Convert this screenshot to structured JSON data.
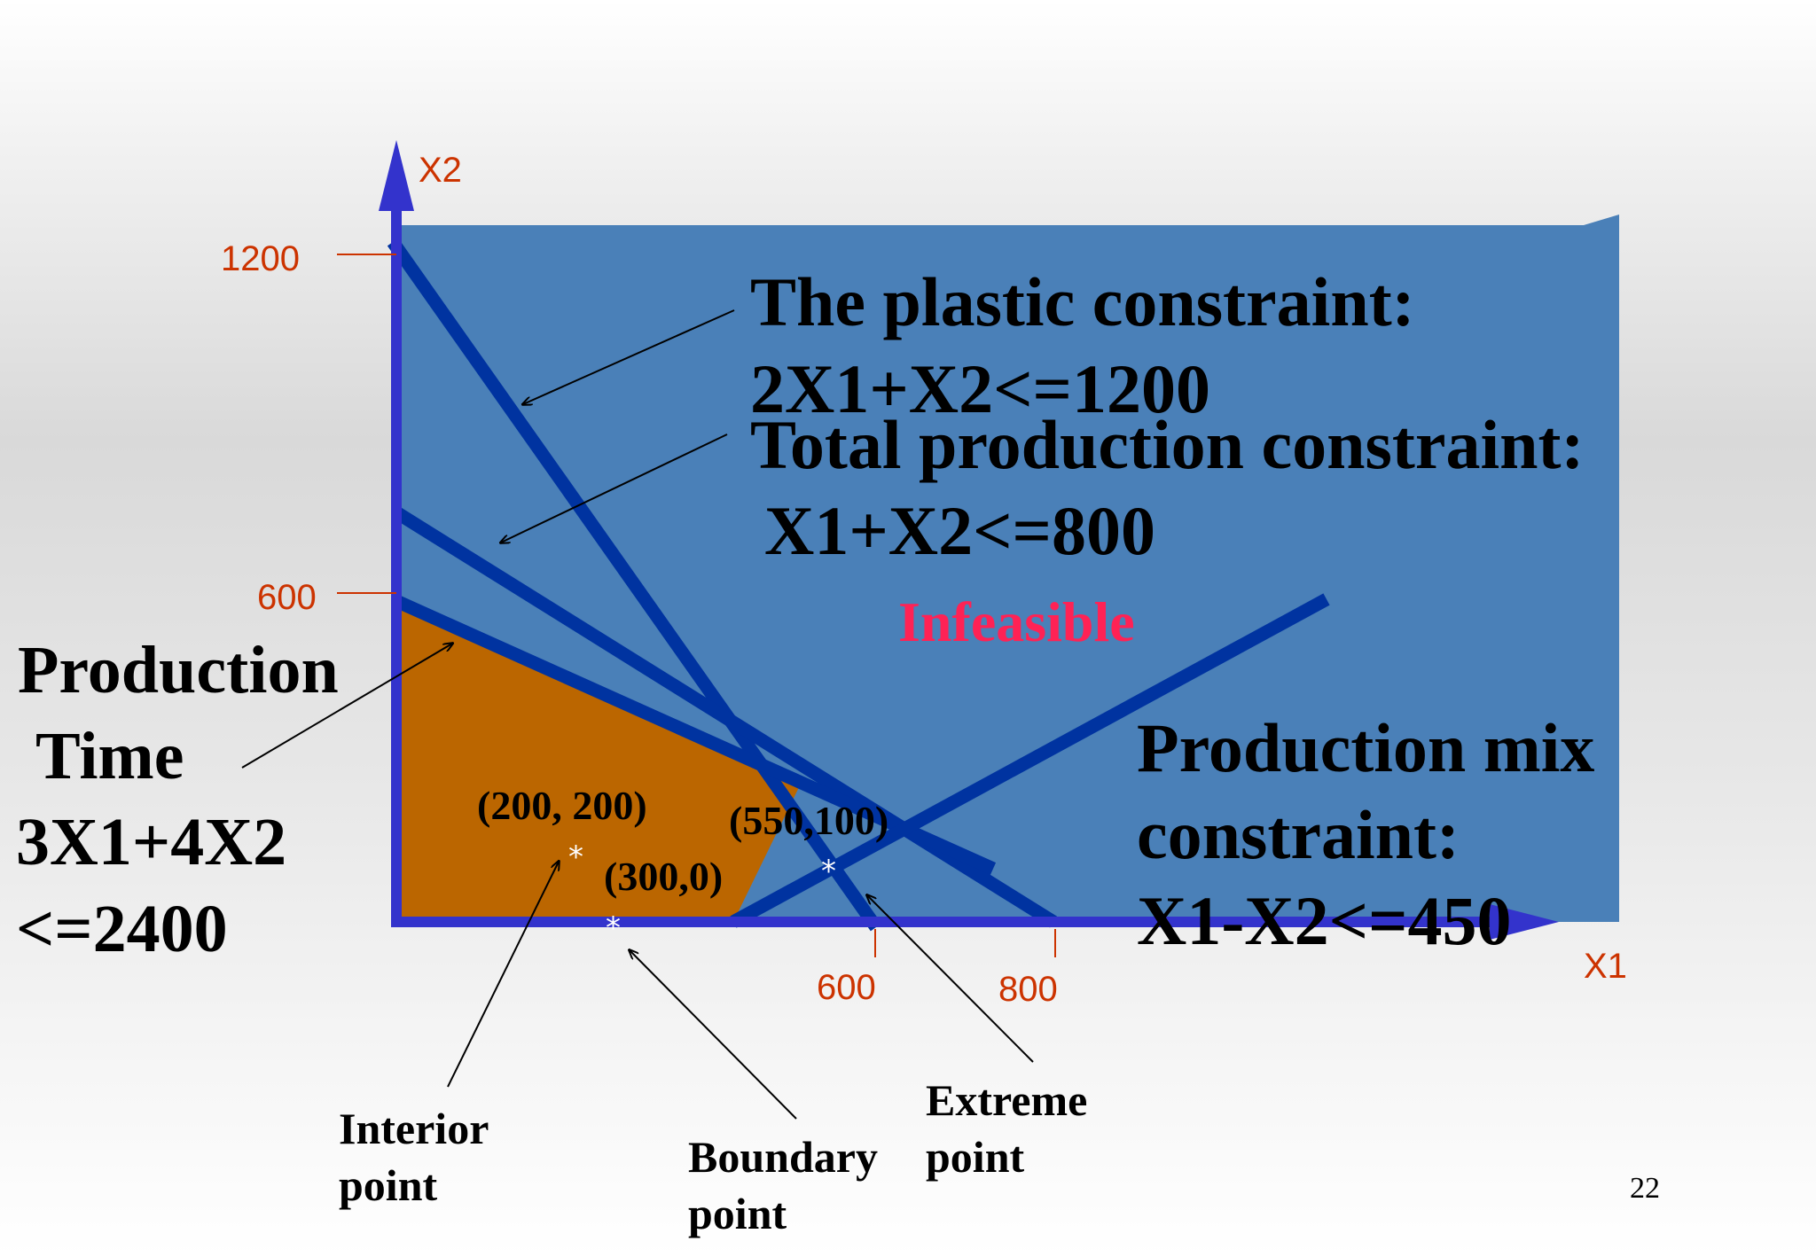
{
  "axes": {
    "x_label": "X1",
    "y_label": "X2",
    "x_ticks": [
      "600",
      "800"
    ],
    "y_ticks": [
      "1200",
      "600"
    ]
  },
  "constraints": {
    "plastic": {
      "title": "The plastic constraint:",
      "expr": "2X1+X2<=1200"
    },
    "total": {
      "title": "Total production constraint:",
      "expr": "X1+X2<=800"
    },
    "mix": {
      "title_1": "Production mix",
      "title_2": "constraint:",
      "expr": "X1-X2<=450"
    },
    "time": {
      "line_1": "Production",
      "line_2": "Time",
      "line_3": "3X1+4X2",
      "line_4": "<=2400"
    }
  },
  "region": {
    "infeasible_label": "Infeasible"
  },
  "points": {
    "p1": "(200, 200)",
    "p2": "(550,100)",
    "p3": "(300,0)",
    "star": "*"
  },
  "annotations": {
    "interior_1": "Interior",
    "interior_2": "point",
    "boundary_1": "Boundary",
    "boundary_2": "point",
    "extreme_1": "Extreme",
    "extreme_2": "point"
  },
  "colors": {
    "background_region": "#4a80b8",
    "feasible_region": "#bb6600",
    "constraint_lines": "#0033a0",
    "axes": "#3333cc",
    "infeasible_text": "#ff2255",
    "tick_text": "#cc3300"
  },
  "page_number": "22"
}
